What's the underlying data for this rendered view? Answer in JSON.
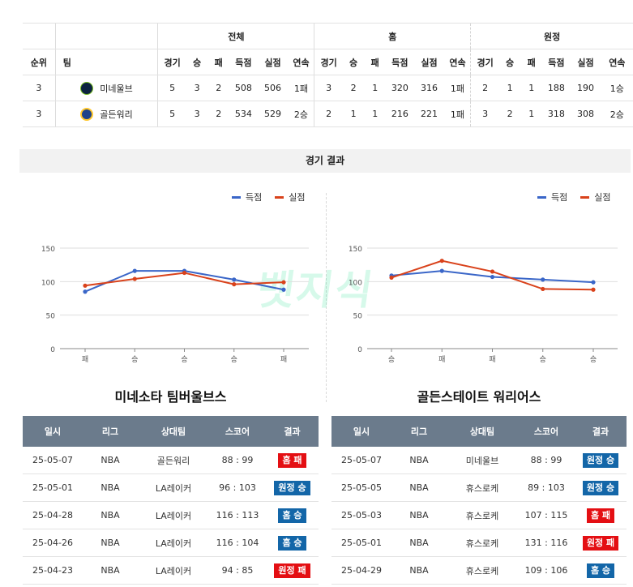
{
  "standings": {
    "groups": [
      "전체",
      "홈",
      "원정"
    ],
    "columns": [
      "순위",
      "팀",
      "경기",
      "승",
      "패",
      "득점",
      "실점",
      "연속"
    ],
    "rows": [
      {
        "rank": "3",
        "team": "미네울브",
        "logo": "timberwolves-logo",
        "total": [
          "5",
          "3",
          "2",
          "508",
          "506",
          "1패"
        ],
        "home": [
          "3",
          "2",
          "1",
          "320",
          "316",
          "1패"
        ],
        "away": [
          "2",
          "1",
          "1",
          "188",
          "190",
          "1승"
        ]
      },
      {
        "rank": "3",
        "team": "골든워리",
        "logo": "warriors-logo",
        "total": [
          "5",
          "3",
          "2",
          "534",
          "529",
          "2승"
        ],
        "home": [
          "2",
          "1",
          "1",
          "216",
          "221",
          "1패"
        ],
        "away": [
          "3",
          "2",
          "1",
          "318",
          "308",
          "2승"
        ]
      }
    ]
  },
  "section_title": "경기 결과",
  "legend": {
    "scored": "득점",
    "conceded": "실점"
  },
  "colors": {
    "scored": "#3a66c8",
    "conceded": "#d9421b",
    "win_badge": "#1366a8",
    "loss_badge": "#e40f13"
  },
  "watermark": "벳지식",
  "chart_data": [
    {
      "type": "line",
      "categories": [
        "패",
        "승",
        "승",
        "승",
        "패"
      ],
      "series": [
        {
          "name": "득점",
          "values": [
            85,
            116,
            116,
            103,
            88
          ]
        },
        {
          "name": "실점",
          "values": [
            94,
            104,
            113,
            96,
            99
          ]
        }
      ],
      "yticks": [
        0,
        50,
        100,
        150
      ],
      "ylim": [
        0,
        150
      ],
      "grid": true,
      "legend_position": "top-right"
    },
    {
      "type": "line",
      "categories": [
        "승",
        "패",
        "패",
        "승",
        "승"
      ],
      "series": [
        {
          "name": "득점",
          "values": [
            109,
            116,
            107,
            103,
            99
          ]
        },
        {
          "name": "실점",
          "values": [
            106,
            131,
            115,
            89,
            88
          ]
        }
      ],
      "yticks": [
        0,
        50,
        100,
        150
      ],
      "ylim": [
        0,
        150
      ],
      "grid": true,
      "legend_position": "top-right"
    }
  ],
  "teams": [
    {
      "title": "미네소타 팀버울브스",
      "columns": [
        "일시",
        "리그",
        "상대팀",
        "스코어",
        "결과"
      ],
      "games": [
        {
          "date": "25-05-07",
          "league": "NBA",
          "opponent": "골든워리",
          "score": "88 : 99",
          "result": "홈 패",
          "color": "red"
        },
        {
          "date": "25-05-01",
          "league": "NBA",
          "opponent": "LA레이커",
          "score": "96 : 103",
          "result": "원정 승",
          "color": "blue"
        },
        {
          "date": "25-04-28",
          "league": "NBA",
          "opponent": "LA레이커",
          "score": "116 : 113",
          "result": "홈 승",
          "color": "blue"
        },
        {
          "date": "25-04-26",
          "league": "NBA",
          "opponent": "LA레이커",
          "score": "116 : 104",
          "result": "홈 승",
          "color": "blue"
        },
        {
          "date": "25-04-23",
          "league": "NBA",
          "opponent": "LA레이커",
          "score": "94 : 85",
          "result": "원정 패",
          "color": "red"
        }
      ]
    },
    {
      "title": "골든스테이트 워리어스",
      "columns": [
        "일시",
        "리그",
        "상대팀",
        "스코어",
        "결과"
      ],
      "games": [
        {
          "date": "25-05-07",
          "league": "NBA",
          "opponent": "미네울브",
          "score": "88 : 99",
          "result": "원정 승",
          "color": "blue"
        },
        {
          "date": "25-05-05",
          "league": "NBA",
          "opponent": "휴스로케",
          "score": "89 : 103",
          "result": "원정 승",
          "color": "blue"
        },
        {
          "date": "25-05-03",
          "league": "NBA",
          "opponent": "휴스로케",
          "score": "107 : 115",
          "result": "홈 패",
          "color": "red"
        },
        {
          "date": "25-05-01",
          "league": "NBA",
          "opponent": "휴스로케",
          "score": "131 : 116",
          "result": "원정 패",
          "color": "red"
        },
        {
          "date": "25-04-29",
          "league": "NBA",
          "opponent": "휴스로케",
          "score": "109 : 106",
          "result": "홈 승",
          "color": "blue"
        }
      ]
    }
  ]
}
